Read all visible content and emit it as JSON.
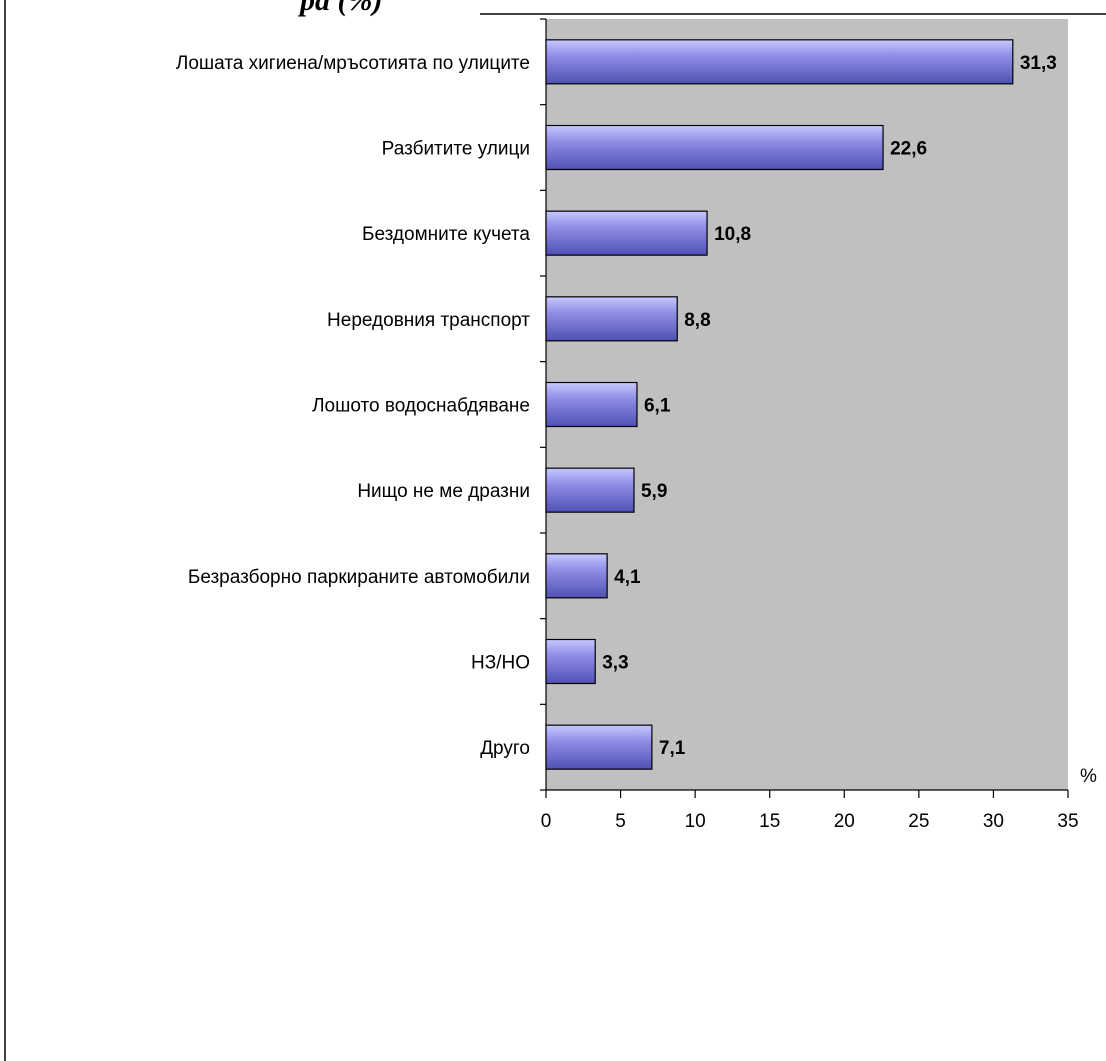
{
  "heading_fragment": "ра (%)",
  "chart_data": {
    "type": "bar",
    "orientation": "horizontal",
    "categories": [
      "Лошата хигиена/мръсотията по улиците",
      "Разбитите улици",
      "Бездомните кучета",
      "Нередовния транспорт",
      "Лошото водоснабдяване",
      "Нищо не ме дразни",
      "Безразборно паркираните автомобили",
      "НЗ/НО",
      "Друго"
    ],
    "values": [
      31.3,
      22.6,
      10.8,
      8.8,
      6.1,
      5.9,
      4.1,
      3.3,
      7.1
    ],
    "value_labels": [
      "31,3",
      "22,6",
      "10,8",
      "8,8",
      "6,1",
      "5,9",
      "4,1",
      "3,3",
      "7,1"
    ],
    "x_ticks": [
      "0",
      "5",
      "10",
      "15",
      "20",
      "25",
      "30",
      "35"
    ],
    "x_unit": "%",
    "xlim": [
      0,
      35
    ],
    "grid": false,
    "legend": "none",
    "colors": {
      "bar_fill_light": "#c8c8ff",
      "bar_fill_dark": "#5050b4",
      "bar_stroke": "#000000",
      "plot_background": "#c0c0c0",
      "page_background": "#ffffff"
    }
  }
}
